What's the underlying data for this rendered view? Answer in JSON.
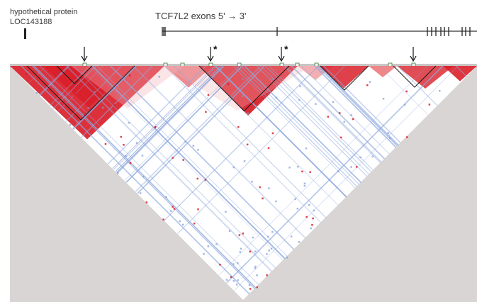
{
  "figure": {
    "gene_label_line1": "hypothetical protein",
    "gene_label_line2": "LOC143188",
    "exon_title": "TCF7L2 exons  5' → 3'",
    "star_mark": "*"
  },
  "arrows": [
    {
      "snp": 1,
      "star": false
    },
    {
      "snp": 2,
      "star": true
    },
    {
      "snp": 3,
      "star": true
    },
    {
      "snp": 4,
      "star": false
    }
  ],
  "colors": {
    "high_ld": "#d9202a",
    "low_ld": "#8fa9dd",
    "background": "#d9d5d4",
    "triangle_fill": "#ffffff",
    "line": "#222222"
  }
}
